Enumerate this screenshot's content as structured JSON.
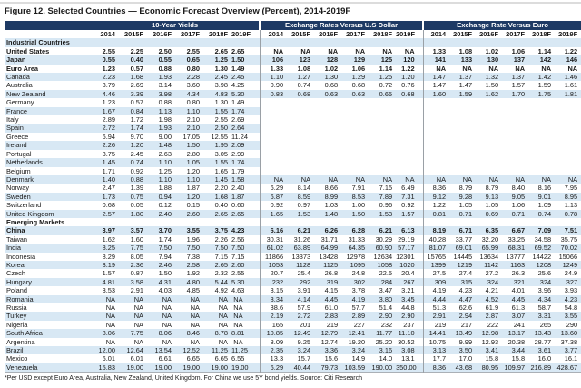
{
  "figure": {
    "title": "Figure 12. Selected Countries — Economic Forecast Overview (Percent), 2014-2019F",
    "footnote": "*Per USD except Euro Area, Australia, New Zealand, United Kingdom. For China we use 5Y bond yields. Source: Citi Research"
  },
  "table": {
    "groups": [
      "10-Year Yields",
      "Exchange Rates Versus U.S Dollar",
      "Exchange Rate Versus Euro"
    ],
    "years": [
      "2014",
      "2015F",
      "2016F",
      "2017F",
      "2018F",
      "2019F"
    ],
    "rows": [
      {
        "label": "Industrial Countries",
        "type": "section"
      },
      {
        "label": "United States",
        "type": "country",
        "bold": true,
        "yields": [
          "2.55",
          "2.25",
          "2.50",
          "2.55",
          "2.65",
          "2.65"
        ],
        "usd": [
          "NA",
          "NA",
          "NA",
          "NA",
          "NA",
          "NA"
        ],
        "euro": [
          "1.33",
          "1.08",
          "1.02",
          "1.06",
          "1.14",
          "1.22"
        ]
      },
      {
        "label": "Japan",
        "type": "country",
        "bold": true,
        "yields": [
          "0.55",
          "0.40",
          "0.55",
          "0.65",
          "1.25",
          "1.50"
        ],
        "usd": [
          "106",
          "123",
          "128",
          "129",
          "125",
          "120"
        ],
        "euro": [
          "141",
          "133",
          "130",
          "137",
          "142",
          "146"
        ]
      },
      {
        "label": "Euro Area",
        "type": "country",
        "bold": true,
        "yields": [
          "1.23",
          "0.57",
          "0.88",
          "0.80",
          "1.30",
          "1.49"
        ],
        "usd": [
          "1.33",
          "1.08",
          "1.02",
          "1.06",
          "1.14",
          "1.22"
        ],
        "euro": [
          "NA",
          "NA",
          "NA",
          "NA",
          "NA",
          "NA"
        ]
      },
      {
        "label": "Canada",
        "type": "country",
        "yields": [
          "2.23",
          "1.68",
          "1.93",
          "2.28",
          "2.45",
          "2.45"
        ],
        "usd": [
          "1.10",
          "1.27",
          "1.30",
          "1.29",
          "1.25",
          "1.20"
        ],
        "euro": [
          "1.47",
          "1.37",
          "1.32",
          "1.37",
          "1.42",
          "1.46"
        ]
      },
      {
        "label": "Australia",
        "type": "country",
        "yields": [
          "3.79",
          "2.69",
          "3.14",
          "3.60",
          "3.98",
          "4.25"
        ],
        "usd": [
          "0.90",
          "0.74",
          "0.68",
          "0.68",
          "0.72",
          "0.76"
        ],
        "euro": [
          "1.47",
          "1.47",
          "1.50",
          "1.57",
          "1.59",
          "1.61"
        ]
      },
      {
        "label": "New Zealand",
        "type": "country",
        "yields": [
          "4.46",
          "3.39",
          "3.98",
          "4.34",
          "4.83",
          "5.30"
        ],
        "usd": [
          "0.83",
          "0.68",
          "0.63",
          "0.63",
          "0.65",
          "0.68"
        ],
        "euro": [
          "1.60",
          "1.59",
          "1.62",
          "1.70",
          "1.75",
          "1.81"
        ]
      },
      {
        "label": "Germany",
        "type": "country",
        "yields": [
          "1.23",
          "0.57",
          "0.88",
          "0.80",
          "1.30",
          "1.49"
        ],
        "usd": [],
        "euro": []
      },
      {
        "label": "France",
        "type": "country",
        "yields": [
          "1.67",
          "0.84",
          "1.13",
          "1.10",
          "1.55",
          "1.74"
        ],
        "usd": [],
        "euro": []
      },
      {
        "label": "Italy",
        "type": "country",
        "yields": [
          "2.89",
          "1.72",
          "1.98",
          "2.10",
          "2.55",
          "2.69"
        ],
        "usd": [],
        "euro": []
      },
      {
        "label": "Spain",
        "type": "country",
        "yields": [
          "2.72",
          "1.74",
          "1.93",
          "2.10",
          "2.50",
          "2.64"
        ],
        "usd": [],
        "euro": []
      },
      {
        "label": "Greece",
        "type": "country",
        "yields": [
          "6.94",
          "9.70",
          "9.00",
          "17.05",
          "12.55",
          "11.24"
        ],
        "usd": [],
        "euro": []
      },
      {
        "label": "Ireland",
        "type": "country",
        "yields": [
          "2.26",
          "1.20",
          "1.48",
          "1.50",
          "1.95",
          "2.09"
        ],
        "usd": [],
        "euro": []
      },
      {
        "label": "Portugal",
        "type": "country",
        "yields": [
          "3.75",
          "2.45",
          "2.63",
          "2.80",
          "3.05",
          "2.99"
        ],
        "usd": [],
        "euro": []
      },
      {
        "label": "Netherlands",
        "type": "country",
        "yields": [
          "1.45",
          "0.74",
          "1.10",
          "1.05",
          "1.55",
          "1.74"
        ],
        "usd": [],
        "euro": []
      },
      {
        "label": "Belgium",
        "type": "country",
        "yields": [
          "1.71",
          "0.92",
          "1.25",
          "1.20",
          "1.65",
          "1.79"
        ],
        "usd": [],
        "euro": []
      },
      {
        "label": "Denmark",
        "type": "country",
        "yields": [
          "1.40",
          "0.88",
          "1.10",
          "1.10",
          "1.45",
          "1.58"
        ],
        "usd": [
          "NA",
          "NA",
          "NA",
          "NA",
          "NA",
          "NA"
        ],
        "euro": [
          "NA",
          "NA",
          "NA",
          "NA",
          "NA",
          "NA"
        ]
      },
      {
        "label": "Norway",
        "type": "country",
        "yields": [
          "2.47",
          "1.39",
          "1.88",
          "1.87",
          "2.20",
          "2.40"
        ],
        "usd": [
          "6.29",
          "8.14",
          "8.66",
          "7.91",
          "7.15",
          "6.49"
        ],
        "euro": [
          "8.36",
          "8.79",
          "8.79",
          "8.40",
          "8.16",
          "7.95"
        ]
      },
      {
        "label": "Sweden",
        "type": "country",
        "yields": [
          "1.73",
          "0.75",
          "0.94",
          "1.20",
          "1.68",
          "1.87"
        ],
        "usd": [
          "6.87",
          "8.59",
          "8.99",
          "8.53",
          "7.89",
          "7.31"
        ],
        "euro": [
          "9.12",
          "9.28",
          "9.13",
          "9.05",
          "9.01",
          "8.95"
        ]
      },
      {
        "label": "Switzerland",
        "type": "country",
        "yields": [
          "0.68",
          "0.05",
          "0.12",
          "0.15",
          "0.40",
          "0.60"
        ],
        "usd": [
          "0.92",
          "0.97",
          "1.03",
          "1.00",
          "0.96",
          "0.92"
        ],
        "euro": [
          "1.22",
          "1.05",
          "1.05",
          "1.06",
          "1.09",
          "1.13"
        ]
      },
      {
        "label": "United Kingdom",
        "type": "country",
        "yields": [
          "2.57",
          "1.80",
          "2.40",
          "2.60",
          "2.65",
          "2.65"
        ],
        "usd": [
          "1.65",
          "1.53",
          "1.48",
          "1.50",
          "1.53",
          "1.57"
        ],
        "euro": [
          "0.81",
          "0.71",
          "0.69",
          "0.71",
          "0.74",
          "0.78"
        ]
      },
      {
        "label": "Emerging Markets",
        "type": "section"
      },
      {
        "label": "China",
        "type": "country",
        "bold": true,
        "yields": [
          "3.97",
          "3.57",
          "3.70",
          "3.55",
          "3.75",
          "4.23"
        ],
        "usd": [
          "6.16",
          "6.21",
          "6.26",
          "6.28",
          "6.21",
          "6.13"
        ],
        "euro": [
          "8.19",
          "6.71",
          "6.35",
          "6.67",
          "7.09",
          "7.51"
        ]
      },
      {
        "label": "Taiwan",
        "type": "country",
        "yields": [
          "1.62",
          "1.60",
          "1.74",
          "1.96",
          "2.26",
          "2.56"
        ],
        "usd": [
          "30.31",
          "31.26",
          "31.71",
          "31.33",
          "30.29",
          "29.19"
        ],
        "euro": [
          "40.28",
          "33.77",
          "32.20",
          "33.25",
          "34.58",
          "35.75"
        ]
      },
      {
        "label": "India",
        "type": "country",
        "yields": [
          "8.25",
          "7.75",
          "7.50",
          "7.50",
          "7.50",
          "7.50"
        ],
        "usd": [
          "61.02",
          "63.89",
          "64.99",
          "64.35",
          "60.90",
          "57.17"
        ],
        "euro": [
          "81.07",
          "69.01",
          "65.99",
          "68.31",
          "69.52",
          "70.02"
        ]
      },
      {
        "label": "Indonesia",
        "type": "country",
        "yields": [
          "8.29",
          "8.05",
          "7.94",
          "7.38",
          "7.15",
          "7.15"
        ],
        "usd": [
          "11866",
          "13373",
          "13428",
          "12978",
          "12634",
          "12301"
        ],
        "euro": [
          "15765",
          "14445",
          "13634",
          "13777",
          "14422",
          "15066"
        ]
      },
      {
        "label": "Korea",
        "type": "country",
        "yields": [
          "3.19",
          "2.36",
          "2.46",
          "2.58",
          "2.65",
          "2.60"
        ],
        "usd": [
          "1053",
          "1128",
          "1125",
          "1095",
          "1058",
          "1020"
        ],
        "euro": [
          "1399",
          "1219",
          "1142",
          "1163",
          "1208",
          "1249"
        ]
      },
      {
        "label": "Czech",
        "type": "country",
        "yields": [
          "1.57",
          "0.87",
          "1.50",
          "1.92",
          "2.32",
          "2.55"
        ],
        "usd": [
          "20.7",
          "25.4",
          "26.8",
          "24.8",
          "22.5",
          "20.4"
        ],
        "euro": [
          "27.5",
          "27.4",
          "27.2",
          "26.3",
          "25.6",
          "24.9"
        ]
      },
      {
        "label": "Hungary",
        "type": "country",
        "yields": [
          "4.81",
          "3.58",
          "4.31",
          "4.80",
          "5.44",
          "5.30"
        ],
        "usd": [
          "232",
          "292",
          "319",
          "302",
          "284",
          "267"
        ],
        "euro": [
          "309",
          "315",
          "324",
          "321",
          "324",
          "327"
        ]
      },
      {
        "label": "Poland",
        "type": "country",
        "yields": [
          "3.53",
          "2.91",
          "4.03",
          "4.85",
          "4.92",
          "4.63"
        ],
        "usd": [
          "3.15",
          "3.91",
          "4.15",
          "3.78",
          "3.47",
          "3.21"
        ],
        "euro": [
          "4.19",
          "4.23",
          "4.21",
          "4.01",
          "3.96",
          "3.93"
        ]
      },
      {
        "label": "Romania",
        "type": "country",
        "yields": [
          "NA",
          "NA",
          "NA",
          "NA",
          "NA",
          "NA"
        ],
        "usd": [
          "3.34",
          "4.14",
          "4.45",
          "4.19",
          "3.80",
          "3.45"
        ],
        "euro": [
          "4.44",
          "4.47",
          "4.52",
          "4.45",
          "4.34",
          "4.23"
        ]
      },
      {
        "label": "Russia",
        "type": "country",
        "yields": [
          "NA",
          "NA",
          "NA",
          "NA",
          "NA",
          "NA"
        ],
        "usd": [
          "38.6",
          "57.9",
          "61.0",
          "57.7",
          "51.4",
          "44.8"
        ],
        "euro": [
          "51.3",
          "62.6",
          "61.9",
          "61.3",
          "58.7",
          "54.8"
        ]
      },
      {
        "label": "Turkey",
        "type": "country",
        "yields": [
          "NA",
          "NA",
          "NA",
          "NA",
          "NA",
          "NA"
        ],
        "usd": [
          "2.19",
          "2.72",
          "2.83",
          "2.89",
          "2.90",
          "2.90"
        ],
        "euro": [
          "2.91",
          "2.94",
          "2.87",
          "3.07",
          "3.31",
          "3.55"
        ]
      },
      {
        "label": "Nigeria",
        "type": "country",
        "yields": [
          "NA",
          "NA",
          "NA",
          "NA",
          "NA",
          "NA"
        ],
        "usd": [
          "165",
          "201",
          "219",
          "227",
          "232",
          "237"
        ],
        "euro": [
          "219",
          "217",
          "222",
          "241",
          "265",
          "290"
        ]
      },
      {
        "label": "South Africa",
        "type": "country",
        "yields": [
          "8.06",
          "7.75",
          "8.06",
          "8.46",
          "8.78",
          "8.81"
        ],
        "usd": [
          "10.85",
          "12.49",
          "12.79",
          "12.41",
          "11.77",
          "11.10"
        ],
        "euro": [
          "14.41",
          "13.49",
          "12.98",
          "13.17",
          "13.43",
          "13.60"
        ]
      },
      {
        "label": "Argentina",
        "type": "country",
        "yields": [
          "NA",
          "NA",
          "NA",
          "NA",
          "NA",
          "NA"
        ],
        "usd": [
          "8.09",
          "9.25",
          "12.74",
          "19.20",
          "25.20",
          "30.52"
        ],
        "euro": [
          "10.75",
          "9.99",
          "12.93",
          "20.38",
          "28.77",
          "37.38"
        ]
      },
      {
        "label": "Brazil",
        "type": "country",
        "yields": [
          "12.00",
          "12.64",
          "13.54",
          "12.52",
          "11.25",
          "11.25"
        ],
        "usd": [
          "2.35",
          "3.24",
          "3.36",
          "3.24",
          "3.16",
          "3.08"
        ],
        "euro": [
          "3.13",
          "3.50",
          "3.41",
          "3.44",
          "3.61",
          "3.77"
        ]
      },
      {
        "label": "Mexico",
        "type": "country",
        "yields": [
          "6.01",
          "6.01",
          "6.61",
          "6.65",
          "6.65",
          "6.55"
        ],
        "usd": [
          "13.3",
          "15.7",
          "15.6",
          "14.9",
          "14.0",
          "13.1"
        ],
        "euro": [
          "17.7",
          "17.0",
          "15.8",
          "15.8",
          "16.0",
          "16.1"
        ]
      },
      {
        "label": "Venezuela",
        "type": "country",
        "yields": [
          "15.83",
          "19.00",
          "19.00",
          "19.00",
          "19.00",
          "19.00"
        ],
        "usd": [
          "6.29",
          "40.44",
          "79.73",
          "103.59",
          "190.00",
          "350.00"
        ],
        "euro": [
          "8.36",
          "43.68",
          "80.95",
          "109.97",
          "216.89",
          "428.67"
        ]
      }
    ]
  }
}
